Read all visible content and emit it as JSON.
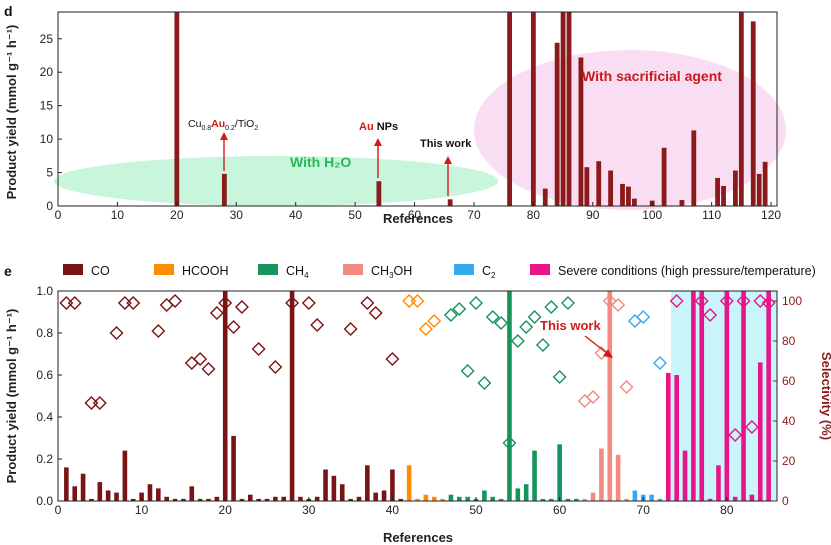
{
  "chart_data": [
    {
      "panel": "d",
      "type": "bar",
      "xlabel": "References",
      "ylabel": "Product yield (mmol g⁻¹ h⁻¹)",
      "xlim": [
        0,
        121
      ],
      "ylim": [
        0,
        29
      ],
      "xticks": [
        0,
        10,
        20,
        30,
        40,
        50,
        60,
        70,
        80,
        90,
        100,
        110,
        120
      ],
      "yticks": [
        0,
        5,
        10,
        15,
        20,
        25
      ],
      "bar_color": "#8b1a1a",
      "x": [
        20,
        28,
        54,
        66,
        76,
        80,
        82,
        84,
        85,
        86,
        88,
        89,
        91,
        93,
        95,
        96,
        97,
        100,
        102,
        105,
        107,
        111,
        112,
        114,
        115,
        117,
        118,
        119
      ],
      "values": [
        29,
        4.8,
        3.7,
        1.0,
        29,
        29,
        2.6,
        24.4,
        29,
        29,
        22.2,
        5.8,
        6.7,
        5.3,
        3.3,
        2.9,
        1.1,
        0.8,
        8.7,
        0.9,
        11.3,
        4.2,
        3.0,
        5.3,
        29,
        27.6,
        4.8,
        6.6
      ],
      "annotations": [
        {
          "text": "Cu0.8Au0.2/TiO2",
          "x": 28
        },
        {
          "text": "Au NPs",
          "x": 54
        },
        {
          "text": "This work",
          "x": 66
        }
      ],
      "regions": [
        {
          "label": "With H2O",
          "color": "#7fefb3"
        },
        {
          "label": "With sacrificial agent",
          "color": "#f7c6ef"
        }
      ]
    },
    {
      "panel": "e",
      "type": "bar",
      "xlabel": "References",
      "ylabel": "Product yield (mmol g⁻¹ h⁻¹)",
      "y2label": "Selectivity (%)",
      "xlim": [
        0,
        86
      ],
      "ylim": [
        0,
        1.0
      ],
      "y2lim": [
        0,
        105
      ],
      "xticks": [
        0,
        10,
        20,
        30,
        40,
        50,
        60,
        70,
        80
      ],
      "yticks": [
        0.0,
        0.2,
        0.4,
        0.6,
        0.8,
        1.0
      ],
      "y2ticks": [
        0,
        20,
        40,
        60,
        80,
        100
      ],
      "annotation": "This work",
      "series": [
        {
          "name": "CO",
          "color": "#7a1414",
          "x": [
            1,
            2,
            3,
            4,
            5,
            6,
            7,
            8,
            9,
            10,
            11,
            12,
            13,
            14,
            15,
            16,
            17,
            18,
            19,
            20,
            21,
            22,
            23,
            24,
            25,
            26,
            27,
            28,
            29,
            30,
            31,
            32,
            33,
            34,
            35,
            36,
            37,
            38,
            39,
            40,
            41
          ],
          "values": [
            0.16,
            0.07,
            0.13,
            0.01,
            0.09,
            0.05,
            0.04,
            0.24,
            0.01,
            0.04,
            0.08,
            0.06,
            0.02,
            0.01,
            0.01,
            0.07,
            0.01,
            0.01,
            0.02,
            1.0,
            0.31,
            0.01,
            0.03,
            0.01,
            0.01,
            0.02,
            0.02,
            1.0,
            0.02,
            0.01,
            0.02,
            0.15,
            0.12,
            0.08,
            0.01,
            0.02,
            0.17,
            0.04,
            0.05,
            0.15,
            0.01
          ],
          "selectivity": [
            99,
            99,
            null,
            49,
            49,
            null,
            84,
            99,
            99,
            null,
            null,
            85,
            98,
            100,
            null,
            69,
            71,
            66,
            94,
            99,
            87,
            97,
            null,
            76,
            null,
            67,
            null,
            99,
            null,
            99,
            88,
            null,
            null,
            null,
            86,
            null,
            99,
            94,
            null,
            71,
            null
          ]
        },
        {
          "name": "HCOOH",
          "color": "#ff8c00",
          "x": [
            42,
            43,
            44,
            45,
            46
          ],
          "values": [
            0.17,
            0.01,
            0.03,
            0.02,
            0.01
          ],
          "selectivity": [
            100,
            100,
            86,
            90,
            null
          ]
        },
        {
          "name": "CH4",
          "color": "#15955c",
          "x": [
            47,
            48,
            49,
            50,
            51,
            52,
            53,
            54,
            55,
            56,
            57,
            58,
            59,
            60,
            61,
            62
          ],
          "values": [
            0.03,
            0.02,
            0.02,
            0.01,
            0.05,
            0.02,
            0.01,
            1.0,
            0.06,
            0.08,
            0.24,
            0.01,
            0.01,
            0.27,
            0.01,
            0.01
          ],
          "selectivity": [
            93,
            96,
            65,
            99,
            59,
            92,
            89,
            29,
            80,
            87,
            92,
            78,
            97,
            62,
            99,
            null
          ]
        },
        {
          "name": "CH3OH",
          "color": "#f28b82",
          "x": [
            63,
            64,
            65,
            66,
            67,
            68
          ],
          "values": [
            0.01,
            0.04,
            0.25,
            1.0,
            0.22,
            0.01
          ],
          "selectivity": [
            50,
            52,
            74,
            100,
            98,
            57
          ]
        },
        {
          "name": "C2",
          "color": "#3aa8ee",
          "x": [
            69,
            70,
            71,
            72
          ],
          "values": [
            0.05,
            0.03,
            0.03,
            0.01
          ],
          "selectivity": [
            90,
            92,
            null,
            69
          ]
        },
        {
          "name": "Severe conditions (high pressure/temperature)",
          "color": "#e8158a",
          "x": [
            73,
            74,
            75,
            76,
            77,
            78,
            79,
            80,
            81,
            82,
            83,
            84,
            85
          ],
          "values": [
            0.61,
            0.6,
            0.24,
            1.0,
            1.0,
            0.01,
            0.17,
            1.0,
            0.02,
            1.0,
            0.03,
            0.66,
            1.0
          ],
          "selectivity": [
            null,
            100,
            null,
            null,
            100,
            93,
            null,
            100,
            33,
            100,
            37,
            100,
            99
          ]
        }
      ],
      "severe_region_color": "#c8f4fa"
    }
  ],
  "labels": {
    "panel_d": "d",
    "panel_e": "e",
    "xlabel": "References",
    "ylabel": "Product yield (mmol g⁻¹ h⁻¹)",
    "y2label": "Selectivity (%)",
    "with_h2o": "With H₂O",
    "with_sacrificial": "With sacrificial agent",
    "ann_cuau_a": "Cu",
    "ann_cuau_b": "0.8",
    "ann_cuau_c": "Au",
    "ann_cuau_d": "0.2",
    "ann_cuau_e": "/TiO",
    "ann_cuau_f": "2",
    "ann_au": "Au",
    "ann_nps": " NPs",
    "ann_thiswork_d": "This work",
    "ann_thiswork_e": "This work",
    "legend_co": "CO",
    "legend_hcooh": "HCOOH",
    "legend_ch4_a": "CH",
    "legend_ch4_b": "4",
    "legend_ch3oh_a": "CH",
    "legend_ch3oh_b": "3",
    "legend_ch3oh_c": "OH",
    "legend_c2_a": "C",
    "legend_c2_b": "2",
    "legend_severe": "Severe conditions (high pressure/temperature)"
  }
}
